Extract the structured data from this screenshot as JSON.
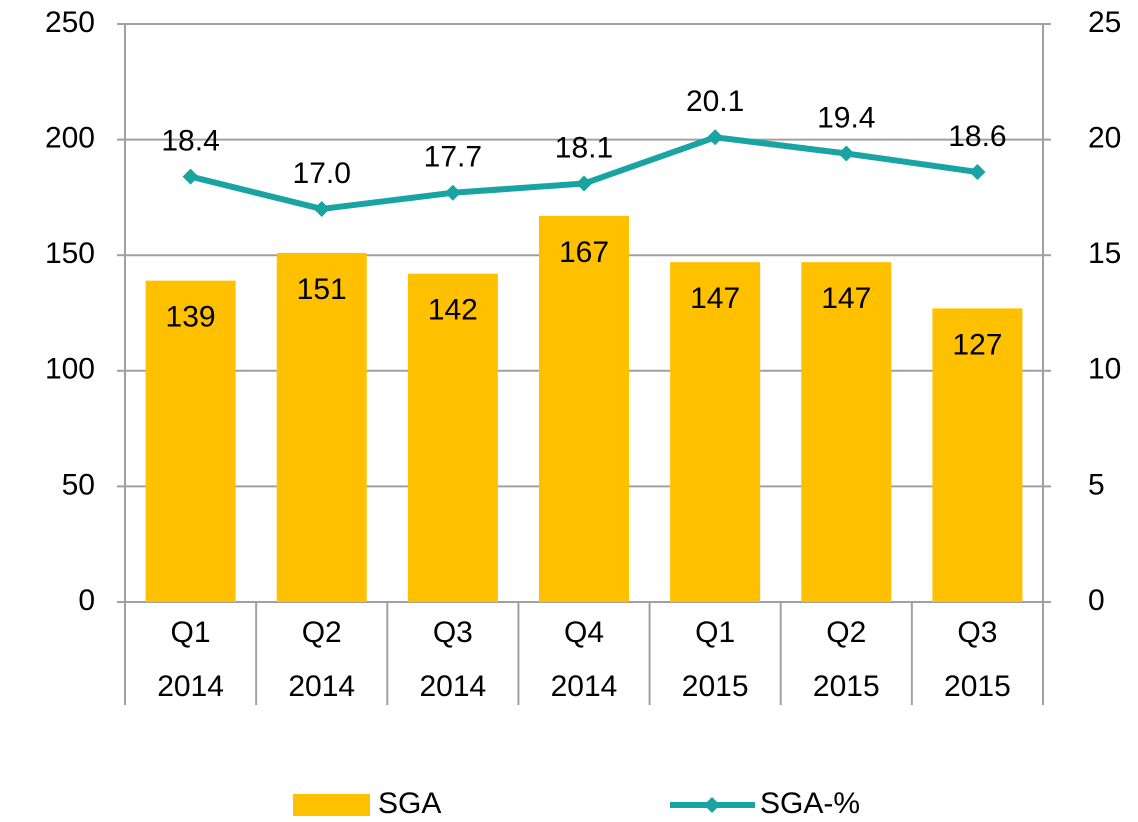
{
  "chart_data": {
    "type": "bar-line",
    "categories": [
      [
        "Q1",
        "2014"
      ],
      [
        "Q2",
        "2014"
      ],
      [
        "Q3",
        "2014"
      ],
      [
        "Q4",
        "2014"
      ],
      [
        "Q1",
        "2015"
      ],
      [
        "Q2",
        "2015"
      ],
      [
        "Q3",
        "2015"
      ]
    ],
    "series": [
      {
        "name": "SGA",
        "type": "bar",
        "color": "#ffc000",
        "values": [
          139,
          151,
          142,
          167,
          147,
          147,
          127
        ]
      },
      {
        "name": "SGA-%",
        "type": "line",
        "axis": "y2",
        "color": "#1aa3a3",
        "values": [
          18.4,
          17.0,
          17.7,
          18.1,
          20.1,
          19.4,
          18.6
        ],
        "value_labels": [
          "18.4",
          "17.0",
          "17.7",
          "18.1",
          "20.1",
          "19.4",
          "18.6"
        ]
      }
    ],
    "ylim": [
      0,
      250
    ],
    "yticks": [
      0,
      50,
      100,
      150,
      200,
      250
    ],
    "y2lim": [
      0,
      25
    ],
    "y2ticks": [
      0,
      5,
      10,
      15,
      20,
      25
    ],
    "grid": true,
    "legend": "bottom"
  }
}
